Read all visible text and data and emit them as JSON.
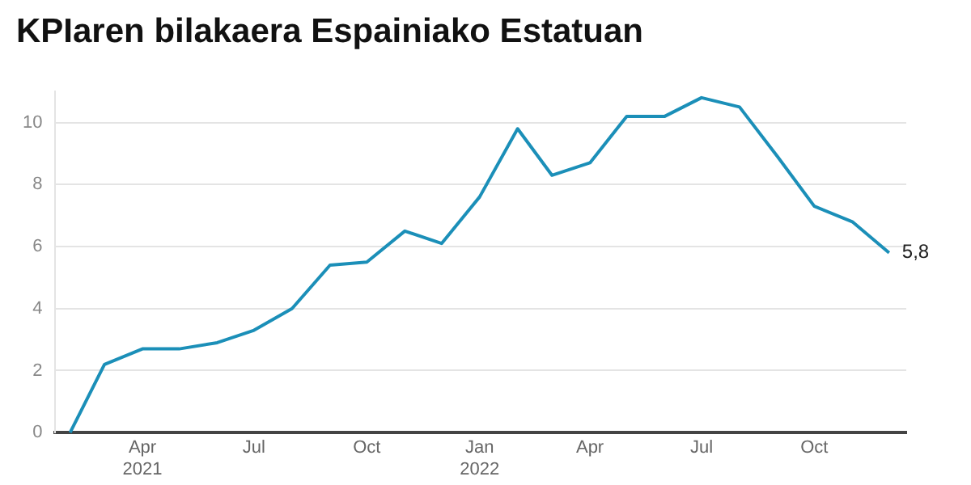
{
  "chart_data": {
    "type": "line",
    "title": "KPIaren bilakaera Espainiako Estatuan",
    "x": [
      "2021-02",
      "2021-03",
      "2021-04",
      "2021-05",
      "2021-06",
      "2021-07",
      "2021-08",
      "2021-09",
      "2021-10",
      "2021-11",
      "2021-12",
      "2022-01",
      "2022-02",
      "2022-03",
      "2022-04",
      "2022-05",
      "2022-06",
      "2022-07",
      "2022-08",
      "2022-09",
      "2022-10",
      "2022-11",
      "2022-12"
    ],
    "series": [
      {
        "color": "#1b8fb8",
        "values": [
          0,
          2.2,
          2.7,
          2.7,
          2.9,
          3.3,
          4.0,
          5.4,
          5.5,
          6.5,
          6.1,
          7.6,
          9.8,
          8.3,
          8.7,
          10.2,
          10.2,
          10.8,
          10.5,
          8.9,
          7.3,
          6.8,
          5.8
        ],
        "value_labels": [
          null,
          null,
          null,
          null,
          null,
          null,
          null,
          null,
          null,
          null,
          null,
          null,
          null,
          null,
          null,
          null,
          null,
          null,
          null,
          null,
          null,
          null,
          "5,8"
        ]
      }
    ],
    "xlim": [
      "2021-01-20",
      "2022-12-15"
    ],
    "xticks": [
      {
        "value": "2021-04",
        "label": "Apr 2021"
      },
      {
        "value": "2021-07",
        "label": "Jul"
      },
      {
        "value": "2021-10",
        "label": "Oct"
      },
      {
        "value": "2022-01",
        "label": "Jan 2022"
      },
      {
        "value": "2022-04",
        "label": "Apr"
      },
      {
        "value": "2022-07",
        "label": "Jul"
      },
      {
        "value": "2022-10",
        "label": "Oct"
      }
    ],
    "ylim": [
      0,
      11
    ],
    "yticks": [
      0,
      2,
      4,
      6,
      8,
      10
    ],
    "grid": "y",
    "legend": false,
    "marker": "none",
    "line_style": "solid"
  }
}
